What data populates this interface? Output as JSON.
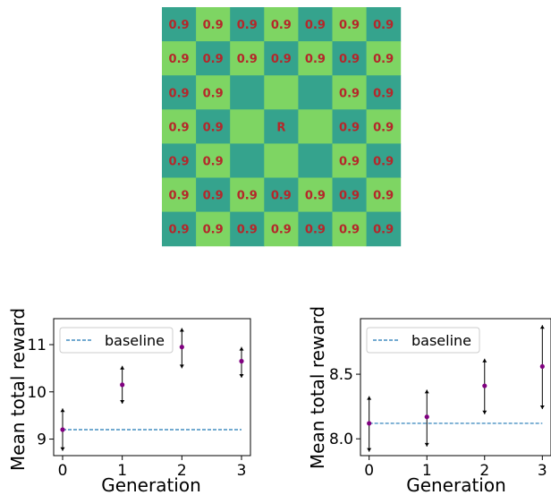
{
  "colors": {
    "cell_light": "#7ed563",
    "cell_dark": "#35a38d",
    "cell_text": "#b5272a",
    "point": "#800080",
    "baseline": "#1f77b4",
    "errorbar": "#000000",
    "axis": "#000000"
  },
  "chart_data": [
    {
      "type": "heatmap",
      "title": "",
      "rows": 7,
      "cols": 7,
      "cells": [
        [
          "0.9",
          "0.9",
          "0.9",
          "0.9",
          "0.9",
          "0.9",
          "0.9"
        ],
        [
          "0.9",
          "0.9",
          "0.9",
          "0.9",
          "0.9",
          "0.9",
          "0.9"
        ],
        [
          "0.9",
          "0.9",
          "",
          "",
          "",
          "0.9",
          "0.9"
        ],
        [
          "0.9",
          "0.9",
          "",
          "R",
          "",
          "0.9",
          "0.9"
        ],
        [
          "0.9",
          "0.9",
          "",
          "",
          "",
          "0.9",
          "0.9"
        ],
        [
          "0.9",
          "0.9",
          "0.9",
          "0.9",
          "0.9",
          "0.9",
          "0.9"
        ],
        [
          "0.9",
          "0.9",
          "0.9",
          "0.9",
          "0.9",
          "0.9",
          "0.9"
        ]
      ],
      "pattern": "checkerboard, top-left cell dark"
    },
    {
      "type": "scatter",
      "title": "",
      "xlabel": "Generation",
      "ylabel": "Mean total reward",
      "xticks": [
        0,
        1,
        2,
        3
      ],
      "yticks": [
        9,
        10,
        11
      ],
      "xlim": [
        -0.15,
        3.15
      ],
      "ylim": [
        8.65,
        11.55
      ],
      "x": [
        0,
        1,
        2,
        3
      ],
      "y": [
        9.2,
        10.15,
        10.95,
        10.65
      ],
      "err_low": [
        8.75,
        9.75,
        10.5,
        10.3
      ],
      "err_high": [
        9.65,
        10.55,
        11.35,
        10.95
      ],
      "baseline": 9.2,
      "legend": [
        "baseline"
      ],
      "legend_position": "top-left",
      "grid": false
    },
    {
      "type": "scatter",
      "title": "",
      "xlabel": "Generation",
      "ylabel": "Mean total reward",
      "xticks": [
        0,
        1,
        2,
        3
      ],
      "yticks": [
        8.0,
        8.5
      ],
      "ytick_labels": [
        "8.0",
        "8.5"
      ],
      "xlim": [
        -0.15,
        3.15
      ],
      "ylim": [
        7.87,
        8.93
      ],
      "x": [
        0,
        1,
        2,
        3
      ],
      "y": [
        8.12,
        8.17,
        8.41,
        8.56
      ],
      "err_low": [
        7.9,
        7.94,
        8.19,
        8.23
      ],
      "err_high": [
        8.33,
        8.38,
        8.62,
        8.88
      ],
      "baseline": 8.12,
      "legend": [
        "baseline"
      ],
      "legend_position": "top-left",
      "grid": false
    }
  ]
}
